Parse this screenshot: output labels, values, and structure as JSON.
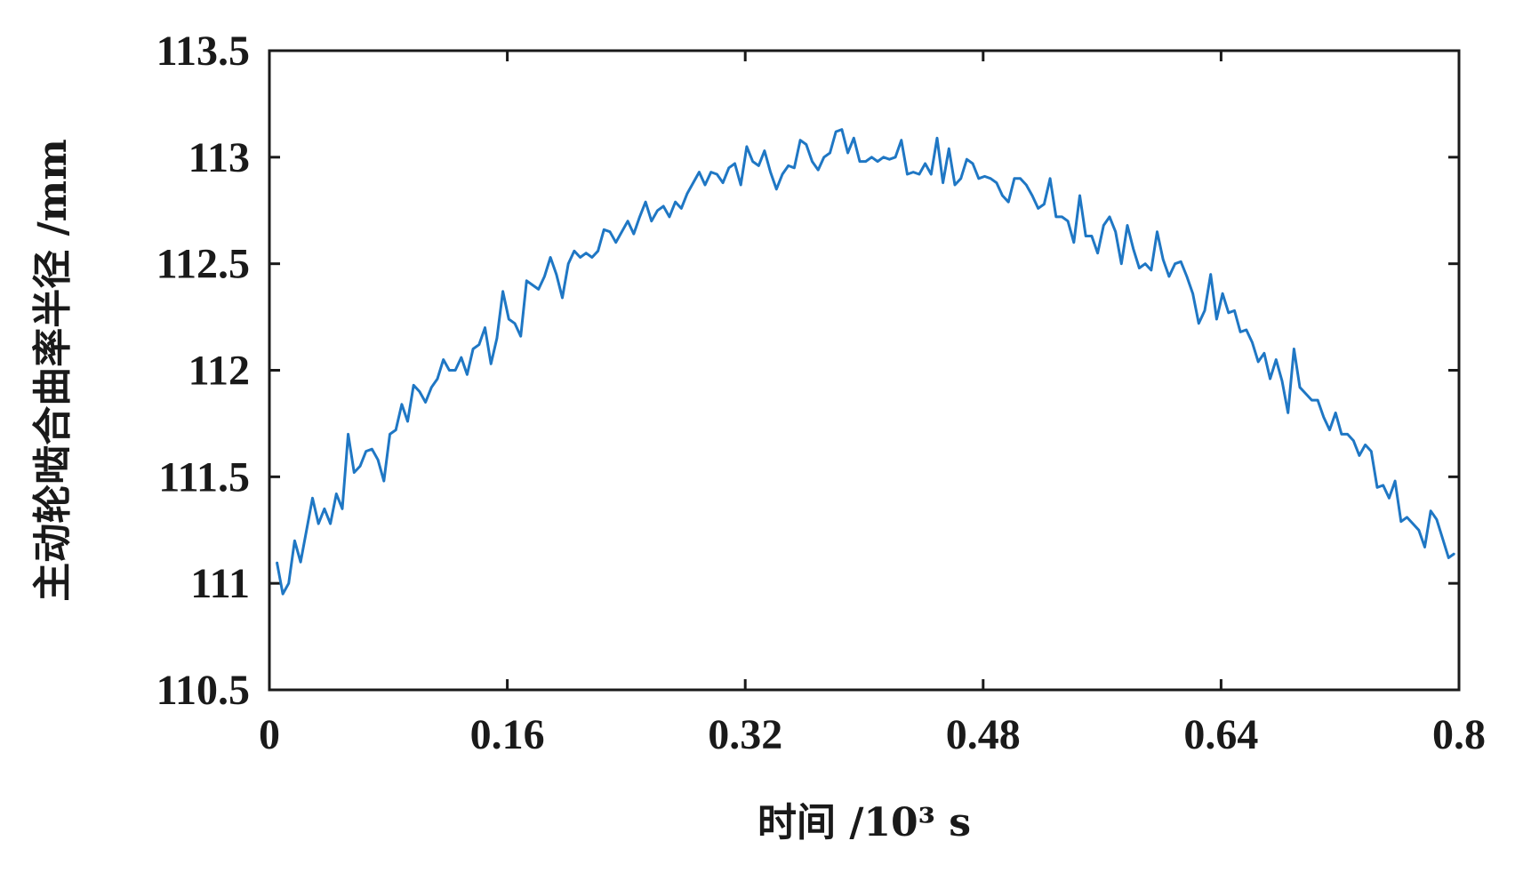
{
  "chart_data": {
    "type": "line",
    "title": "",
    "xlabel": "时间 /10³ s",
    "ylabel": "主动轮啮合曲率半径 /mm",
    "xlim": [
      0,
      0.8
    ],
    "ylim": [
      110.5,
      113.5
    ],
    "x_ticks": [
      "0",
      "0.16",
      "0.32",
      "0.48",
      "0.64",
      "0.8"
    ],
    "y_ticks": [
      "110.5",
      "111",
      "111.5",
      "112",
      "112.5",
      "113",
      "113.5"
    ],
    "grid": false,
    "legend": "none",
    "series": [
      {
        "color": "#1f77c4",
        "x": [
          0.005,
          0.009,
          0.013,
          0.017,
          0.021,
          0.025,
          0.029,
          0.033,
          0.037,
          0.041,
          0.045,
          0.049,
          0.053,
          0.057,
          0.061,
          0.065,
          0.069,
          0.073,
          0.077,
          0.081,
          0.085,
          0.089,
          0.093,
          0.097,
          0.101,
          0.105,
          0.109,
          0.113,
          0.117,
          0.121,
          0.125,
          0.129,
          0.133,
          0.137,
          0.141,
          0.145,
          0.149,
          0.153,
          0.157,
          0.161,
          0.165,
          0.169,
          0.173,
          0.177,
          0.181,
          0.185,
          0.189,
          0.193,
          0.197,
          0.201,
          0.205,
          0.209,
          0.213,
          0.217,
          0.221,
          0.225,
          0.229,
          0.233,
          0.237,
          0.241,
          0.245,
          0.249,
          0.253,
          0.257,
          0.261,
          0.265,
          0.269,
          0.273,
          0.277,
          0.281,
          0.285,
          0.289,
          0.293,
          0.297,
          0.301,
          0.305,
          0.309,
          0.313,
          0.317,
          0.321,
          0.325,
          0.329,
          0.333,
          0.337,
          0.341,
          0.345,
          0.349,
          0.353,
          0.357,
          0.361,
          0.365,
          0.369,
          0.373,
          0.377,
          0.381,
          0.385,
          0.389,
          0.393,
          0.397,
          0.401,
          0.405,
          0.409,
          0.413,
          0.417,
          0.421,
          0.425,
          0.429,
          0.433,
          0.437,
          0.441,
          0.445,
          0.449,
          0.453,
          0.457,
          0.461,
          0.465,
          0.469,
          0.473,
          0.477,
          0.481,
          0.485,
          0.489,
          0.493,
          0.497,
          0.501,
          0.505,
          0.509,
          0.513,
          0.517,
          0.521,
          0.525,
          0.529,
          0.533,
          0.537,
          0.541,
          0.545,
          0.549,
          0.553,
          0.557,
          0.561,
          0.565,
          0.569,
          0.573,
          0.577,
          0.581,
          0.585,
          0.589,
          0.593,
          0.597,
          0.601,
          0.605,
          0.609,
          0.613,
          0.617,
          0.621,
          0.625,
          0.629,
          0.633,
          0.637,
          0.641,
          0.645,
          0.649,
          0.653,
          0.657,
          0.661,
          0.665,
          0.669,
          0.673,
          0.677,
          0.681,
          0.685,
          0.689,
          0.693,
          0.697,
          0.701,
          0.705,
          0.709,
          0.713,
          0.717,
          0.721,
          0.725,
          0.729,
          0.733,
          0.737,
          0.741,
          0.745,
          0.749,
          0.753,
          0.757,
          0.761,
          0.765,
          0.769,
          0.773,
          0.777,
          0.781,
          0.785,
          0.789,
          0.793,
          0.797
        ],
        "y": [
          111.1,
          110.95,
          111.0,
          111.2,
          111.1,
          111.25,
          111.4,
          111.28,
          111.35,
          111.28,
          111.42,
          111.35,
          111.7,
          111.52,
          111.55,
          111.62,
          111.63,
          111.58,
          111.48,
          111.7,
          111.72,
          111.84,
          111.76,
          111.93,
          111.9,
          111.85,
          111.92,
          111.96,
          112.05,
          112.0,
          112.0,
          112.06,
          111.98,
          112.1,
          112.12,
          112.2,
          112.03,
          112.15,
          112.37,
          112.24,
          112.22,
          112.16,
          112.42,
          112.4,
          112.38,
          112.44,
          112.53,
          112.45,
          112.34,
          112.5,
          112.56,
          112.53,
          112.55,
          112.53,
          112.56,
          112.66,
          112.65,
          112.6,
          112.65,
          112.7,
          112.64,
          112.72,
          112.79,
          112.7,
          112.75,
          112.77,
          112.72,
          112.79,
          112.76,
          112.83,
          112.88,
          112.93,
          112.87,
          112.93,
          112.92,
          112.88,
          112.95,
          112.97,
          112.87,
          113.05,
          112.98,
          112.96,
          113.03,
          112.93,
          112.85,
          112.92,
          112.96,
          112.95,
          113.08,
          113.06,
          112.98,
          112.94,
          113.0,
          113.02,
          113.12,
          113.13,
          113.02,
          113.09,
          112.98,
          112.98,
          113.0,
          112.98,
          113.0,
          112.99,
          113.0,
          113.08,
          112.92,
          112.93,
          112.92,
          112.97,
          112.92,
          113.09,
          112.88,
          113.04,
          112.87,
          112.9,
          112.99,
          112.97,
          112.9,
          112.91,
          112.9,
          112.88,
          112.82,
          112.79,
          112.9,
          112.9,
          112.87,
          112.82,
          112.76,
          112.78,
          112.9,
          112.72,
          112.72,
          112.7,
          112.6,
          112.82,
          112.63,
          112.63,
          112.55,
          112.68,
          112.72,
          112.65,
          112.5,
          112.68,
          112.57,
          112.48,
          112.5,
          112.47,
          112.65,
          112.52,
          112.44,
          112.5,
          112.51,
          112.44,
          112.36,
          112.22,
          112.28,
          112.45,
          112.24,
          112.36,
          112.27,
          112.28,
          112.18,
          112.19,
          112.13,
          112.04,
          112.08,
          111.96,
          112.05,
          111.95,
          111.8,
          112.1,
          111.92,
          111.89,
          111.86,
          111.86,
          111.78,
          111.72,
          111.8,
          111.7,
          111.7,
          111.67,
          111.6,
          111.65,
          111.62,
          111.45,
          111.46,
          111.4,
          111.48,
          111.29,
          111.31,
          111.28,
          111.25,
          111.17,
          111.34,
          111.3,
          111.21,
          111.12,
          111.14
        ]
      }
    ]
  }
}
